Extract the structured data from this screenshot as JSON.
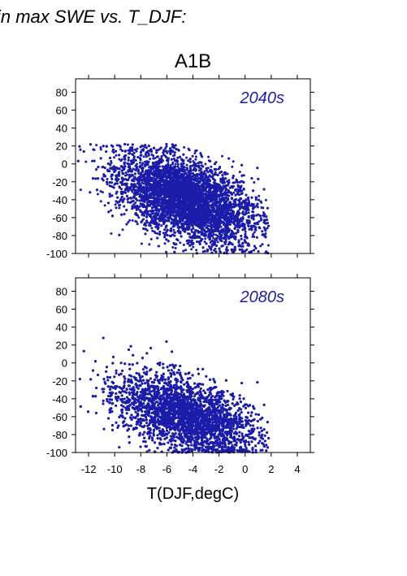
{
  "page": {
    "title": "in max SWE vs. T_DJF:"
  },
  "chart_data": [
    {
      "type": "scatter",
      "title": "A1B",
      "annotation": "2040s",
      "xlabel": "T(DJF,degC)",
      "ylabel": "",
      "xlim": [
        -13,
        5
      ],
      "ylim": [
        -100,
        95
      ],
      "xticks": [
        -12,
        -10,
        -8,
        -6,
        -4,
        -2,
        0,
        2,
        4
      ],
      "yticks": [
        -100,
        -80,
        -60,
        -40,
        -20,
        0,
        20,
        40,
        60,
        80
      ],
      "color": "#1c1caa",
      "grid": false,
      "cloud": {
        "points": 9000,
        "x_min": -13,
        "x_max": 1.8,
        "x_center": -4.5,
        "x_spread": 2.7,
        "y_center": -40,
        "y_spread": 22,
        "slope": -4.5,
        "y_max": 22,
        "y_min": -100
      }
    },
    {
      "type": "scatter",
      "title": "",
      "annotation": "2080s",
      "xlabel": "T(DJF,degC)",
      "ylabel": "",
      "xlim": [
        -13,
        5
      ],
      "ylim": [
        -100,
        95
      ],
      "xticks": [
        -12,
        -10,
        -8,
        -6,
        -4,
        -2,
        0,
        2,
        4
      ],
      "yticks": [
        -100,
        -80,
        -60,
        -40,
        -20,
        0,
        20,
        40,
        60,
        80
      ],
      "color": "#1c1caa",
      "grid": false,
      "cloud": {
        "points": 9000,
        "x_min": -13,
        "x_max": 1.8,
        "x_center": -4.5,
        "x_spread": 2.7,
        "y_center": -58,
        "y_spread": 20,
        "slope": -4.0,
        "y_max": 30,
        "y_min": -100
      }
    }
  ]
}
